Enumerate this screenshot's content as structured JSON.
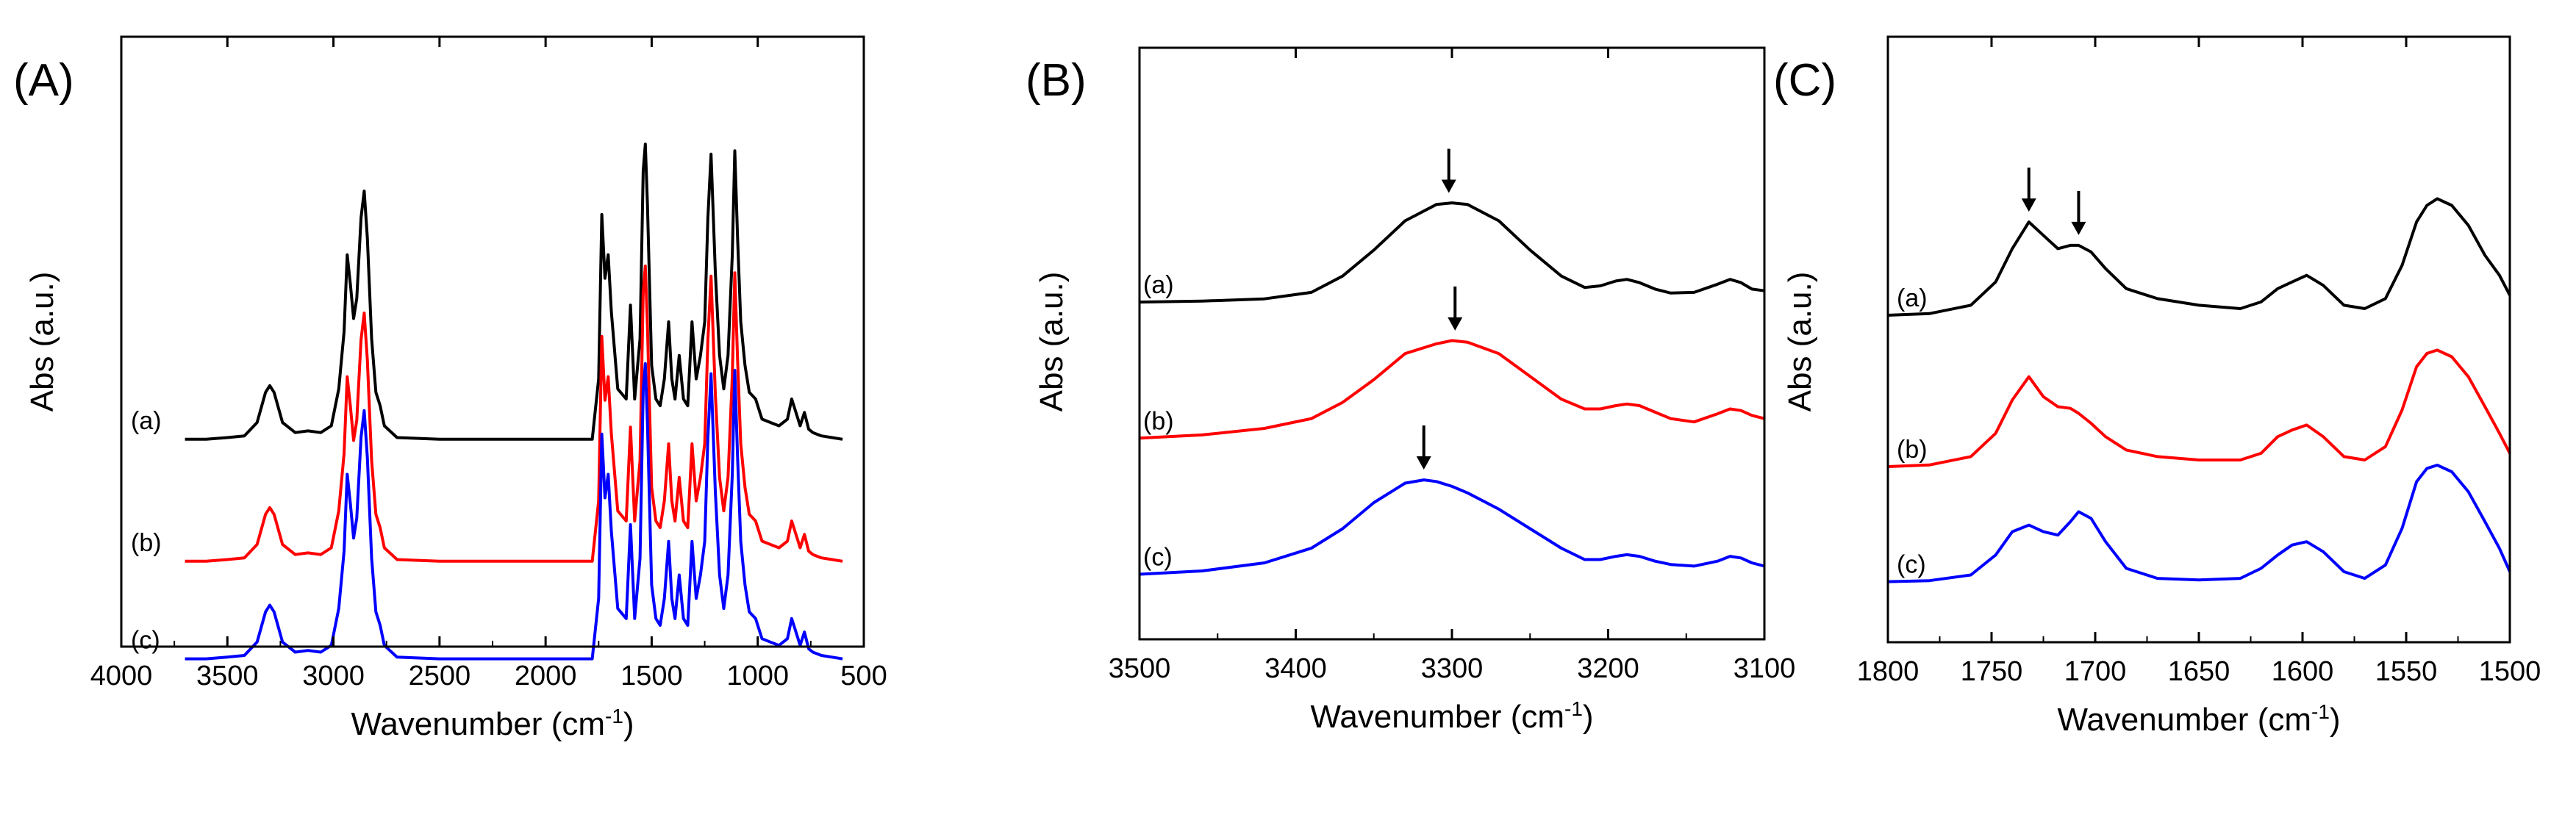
{
  "figure": {
    "background": "#ffffff",
    "axis_color": "#000000"
  },
  "chart_data": [
    {
      "type": "line",
      "panel_label": "(A)",
      "xlabel": "Wavenumber (cm",
      "xlabel_sup": "-1",
      "xlabel_end": ")",
      "ylabel": "Abs (a.u.)",
      "xlim": [
        4000,
        500
      ],
      "x_reversed": true,
      "ylim": [
        0,
        1
      ],
      "xticks": [
        4000,
        3500,
        3000,
        2500,
        2000,
        1500,
        1000,
        500
      ],
      "xtick_labels": [
        "4000",
        "3500",
        "3000",
        "2500",
        "2000",
        "1500",
        "1000",
        "500"
      ],
      "yticks": [],
      "arrows": [],
      "series": [
        {
          "name": "(a)",
          "color": "#000000",
          "baseline": 0.66,
          "x": [
            3700,
            3600,
            3500,
            3420,
            3360,
            3320,
            3300,
            3280,
            3240,
            3180,
            3120,
            3060,
            3010,
            2975,
            2950,
            2935,
            2920,
            2905,
            2890,
            2870,
            2855,
            2840,
            2820,
            2800,
            2780,
            2760,
            2700,
            2500,
            2000,
            1780,
            1750,
            1735,
            1720,
            1705,
            1690,
            1660,
            1620,
            1600,
            1580,
            1555,
            1540,
            1530,
            1520,
            1500,
            1480,
            1460,
            1440,
            1420,
            1405,
            1390,
            1370,
            1350,
            1330,
            1310,
            1290,
            1270,
            1250,
            1235,
            1220,
            1200,
            1180,
            1160,
            1140,
            1120,
            1108,
            1095,
            1080,
            1060,
            1040,
            1010,
            980,
            940,
            900,
            860,
            840,
            820,
            800,
            780,
            760,
            740,
            700,
            650,
            600
          ],
          "y": [
            0,
            0,
            0.005,
            0.01,
            0.05,
            0.14,
            0.16,
            0.14,
            0.05,
            0.02,
            0.025,
            0.02,
            0.04,
            0.15,
            0.32,
            0.55,
            0.46,
            0.36,
            0.42,
            0.66,
            0.74,
            0.6,
            0.3,
            0.14,
            0.1,
            0.04,
            0.005,
            0,
            0,
            0,
            0.18,
            0.67,
            0.48,
            0.55,
            0.38,
            0.15,
            0.12,
            0.4,
            0.12,
            0.3,
            0.8,
            0.88,
            0.7,
            0.22,
            0.12,
            0.1,
            0.18,
            0.35,
            0.18,
            0.12,
            0.25,
            0.12,
            0.1,
            0.35,
            0.18,
            0.25,
            0.35,
            0.66,
            0.85,
            0.5,
            0.25,
            0.15,
            0.25,
            0.55,
            0.86,
            0.6,
            0.35,
            0.22,
            0.14,
            0.12,
            0.06,
            0.05,
            0.04,
            0.06,
            0.12,
            0.08,
            0.04,
            0.08,
            0.03,
            0.02,
            0.01,
            0.005,
            0
          ]
        },
        {
          "name": "(b)",
          "color": "#ff0000",
          "baseline": 0.86,
          "x": [
            3700,
            3600,
            3500,
            3420,
            3360,
            3320,
            3300,
            3280,
            3240,
            3180,
            3120,
            3060,
            3010,
            2975,
            2950,
            2935,
            2920,
            2905,
            2890,
            2870,
            2855,
            2840,
            2820,
            2800,
            2780,
            2760,
            2700,
            2500,
            2000,
            1780,
            1750,
            1735,
            1720,
            1705,
            1690,
            1660,
            1620,
            1600,
            1580,
            1555,
            1540,
            1530,
            1520,
            1500,
            1480,
            1460,
            1440,
            1420,
            1405,
            1390,
            1370,
            1350,
            1330,
            1310,
            1290,
            1270,
            1250,
            1235,
            1220,
            1200,
            1180,
            1160,
            1140,
            1120,
            1108,
            1095,
            1080,
            1060,
            1040,
            1010,
            980,
            940,
            900,
            860,
            840,
            820,
            800,
            780,
            760,
            740,
            700,
            650,
            600
          ],
          "y": [
            0,
            0,
            0.005,
            0.01,
            0.05,
            0.14,
            0.16,
            0.14,
            0.05,
            0.02,
            0.025,
            0.02,
            0.04,
            0.15,
            0.32,
            0.55,
            0.46,
            0.36,
            0.42,
            0.66,
            0.74,
            0.6,
            0.3,
            0.14,
            0.1,
            0.04,
            0.005,
            0,
            0,
            0,
            0.18,
            0.67,
            0.48,
            0.55,
            0.38,
            0.15,
            0.12,
            0.4,
            0.12,
            0.3,
            0.8,
            0.88,
            0.7,
            0.22,
            0.12,
            0.1,
            0.18,
            0.35,
            0.18,
            0.12,
            0.25,
            0.12,
            0.1,
            0.35,
            0.18,
            0.25,
            0.35,
            0.66,
            0.85,
            0.5,
            0.25,
            0.15,
            0.25,
            0.55,
            0.86,
            0.6,
            0.35,
            0.22,
            0.14,
            0.12,
            0.06,
            0.05,
            0.04,
            0.06,
            0.12,
            0.08,
            0.04,
            0.08,
            0.03,
            0.02,
            0.01,
            0.005,
            0
          ]
        },
        {
          "name": "(c)",
          "color": "#0000ff",
          "baseline": 1.02,
          "x": [
            3700,
            3600,
            3500,
            3420,
            3360,
            3320,
            3300,
            3280,
            3240,
            3180,
            3120,
            3060,
            3010,
            2975,
            2950,
            2935,
            2920,
            2905,
            2890,
            2870,
            2855,
            2840,
            2820,
            2800,
            2780,
            2760,
            2700,
            2500,
            2000,
            1780,
            1750,
            1735,
            1720,
            1705,
            1690,
            1660,
            1620,
            1600,
            1580,
            1555,
            1540,
            1530,
            1520,
            1500,
            1480,
            1460,
            1440,
            1420,
            1405,
            1390,
            1370,
            1350,
            1330,
            1310,
            1290,
            1270,
            1250,
            1235,
            1220,
            1200,
            1180,
            1160,
            1140,
            1120,
            1108,
            1095,
            1080,
            1060,
            1040,
            1010,
            980,
            940,
            900,
            860,
            840,
            820,
            800,
            780,
            760,
            740,
            700,
            650,
            600
          ],
          "y": [
            0,
            0,
            0.005,
            0.01,
            0.05,
            0.14,
            0.16,
            0.14,
            0.05,
            0.02,
            0.025,
            0.02,
            0.04,
            0.15,
            0.32,
            0.55,
            0.46,
            0.36,
            0.42,
            0.66,
            0.74,
            0.6,
            0.3,
            0.14,
            0.1,
            0.04,
            0.005,
            0,
            0,
            0,
            0.18,
            0.67,
            0.48,
            0.55,
            0.38,
            0.15,
            0.12,
            0.4,
            0.12,
            0.3,
            0.8,
            0.88,
            0.7,
            0.22,
            0.12,
            0.1,
            0.18,
            0.35,
            0.18,
            0.12,
            0.25,
            0.12,
            0.1,
            0.35,
            0.18,
            0.25,
            0.35,
            0.66,
            0.85,
            0.5,
            0.25,
            0.15,
            0.25,
            0.55,
            0.86,
            0.6,
            0.35,
            0.22,
            0.14,
            0.12,
            0.06,
            0.05,
            0.04,
            0.06,
            0.12,
            0.08,
            0.04,
            0.08,
            0.03,
            0.02,
            0.01,
            0.005,
            0
          ]
        }
      ]
    },
    {
      "type": "line",
      "panel_label": "(B)",
      "xlabel": "Wavenumber (cm",
      "xlabel_sup": "-1",
      "xlabel_end": ")",
      "ylabel": "Abs (a.u.)",
      "xlim": [
        3500,
        3100
      ],
      "x_reversed": true,
      "ylim": [
        0,
        1
      ],
      "xticks": [
        3500,
        3400,
        3300,
        3200,
        3100
      ],
      "xtick_labels": [
        "3500",
        "3400",
        "3300",
        "3200",
        "3100"
      ],
      "yticks": [],
      "arrows": [
        {
          "series": "(a)",
          "x": 3302
        },
        {
          "series": "(b)",
          "x": 3298
        },
        {
          "series": "(c)",
          "x": 3318
        }
      ],
      "series": [
        {
          "name": "(a)",
          "color": "#000000",
          "baseline": 0.43,
          "x": [
            3500,
            3460,
            3420,
            3390,
            3370,
            3350,
            3330,
            3310,
            3300,
            3290,
            3270,
            3250,
            3230,
            3215,
            3205,
            3195,
            3188,
            3180,
            3170,
            3160,
            3145,
            3130,
            3122,
            3115,
            3108,
            3100
          ],
          "y": [
            0,
            0.003,
            0.01,
            0.03,
            0.08,
            0.16,
            0.25,
            0.3,
            0.305,
            0.3,
            0.25,
            0.16,
            0.08,
            0.045,
            0.05,
            0.065,
            0.07,
            0.06,
            0.04,
            0.028,
            0.03,
            0.055,
            0.07,
            0.06,
            0.04,
            0.035
          ]
        },
        {
          "name": "(b)",
          "color": "#ff0000",
          "baseline": 0.66,
          "x": [
            3500,
            3460,
            3420,
            3390,
            3370,
            3350,
            3330,
            3310,
            3300,
            3290,
            3270,
            3250,
            3230,
            3215,
            3205,
            3195,
            3188,
            3180,
            3170,
            3160,
            3145,
            3130,
            3122,
            3115,
            3108,
            3100
          ],
          "y": [
            0,
            0.01,
            0.03,
            0.06,
            0.11,
            0.18,
            0.26,
            0.29,
            0.3,
            0.295,
            0.26,
            0.19,
            0.12,
            0.09,
            0.09,
            0.1,
            0.105,
            0.1,
            0.08,
            0.06,
            0.05,
            0.075,
            0.09,
            0.085,
            0.07,
            0.06
          ]
        },
        {
          "name": "(c)",
          "color": "#0000ff",
          "baseline": 0.89,
          "x": [
            3500,
            3460,
            3420,
            3390,
            3370,
            3350,
            3330,
            3318,
            3310,
            3300,
            3290,
            3270,
            3250,
            3230,
            3215,
            3205,
            3195,
            3188,
            3180,
            3170,
            3160,
            3145,
            3130,
            3122,
            3115,
            3108,
            3100
          ],
          "y": [
            0,
            0.01,
            0.035,
            0.08,
            0.14,
            0.22,
            0.28,
            0.29,
            0.285,
            0.27,
            0.25,
            0.2,
            0.14,
            0.08,
            0.045,
            0.045,
            0.055,
            0.06,
            0.055,
            0.04,
            0.03,
            0.025,
            0.04,
            0.055,
            0.05,
            0.035,
            0.025
          ]
        }
      ]
    },
    {
      "type": "line",
      "panel_label": "(C)",
      "xlabel": "Wavenumber (cm",
      "xlabel_sup": "-1",
      "xlabel_end": ")",
      "ylabel": "Abs (a.u.)",
      "xlim": [
        1800,
        1500
      ],
      "x_reversed": true,
      "ylim": [
        0,
        1
      ],
      "xticks": [
        1800,
        1750,
        1700,
        1650,
        1600,
        1550,
        1500
      ],
      "xtick_labels": [
        "1800",
        "1750",
        "1700",
        "1650",
        "1600",
        "1550",
        "1500"
      ],
      "yticks": [],
      "arrows": [
        {
          "series": "(a)",
          "x": 1732
        },
        {
          "series": "(a)",
          "x": 1708
        }
      ],
      "series": [
        {
          "name": "(a)",
          "color": "#000000",
          "baseline": 0.46,
          "x": [
            1800,
            1780,
            1760,
            1748,
            1740,
            1732,
            1725,
            1718,
            1712,
            1708,
            1702,
            1695,
            1685,
            1670,
            1650,
            1630,
            1620,
            1612,
            1605,
            1598,
            1590,
            1580,
            1570,
            1560,
            1552,
            1545,
            1540,
            1535,
            1528,
            1520,
            1512,
            1505,
            1500
          ],
          "y": [
            0,
            0.005,
            0.03,
            0.1,
            0.2,
            0.28,
            0.24,
            0.2,
            0.21,
            0.21,
            0.19,
            0.14,
            0.08,
            0.05,
            0.03,
            0.02,
            0.04,
            0.08,
            0.1,
            0.12,
            0.09,
            0.03,
            0.02,
            0.05,
            0.15,
            0.28,
            0.33,
            0.35,
            0.33,
            0.27,
            0.18,
            0.12,
            0.06
          ]
        },
        {
          "name": "(b)",
          "color": "#ff0000",
          "baseline": 0.71,
          "x": [
            1800,
            1780,
            1760,
            1748,
            1740,
            1732,
            1725,
            1718,
            1712,
            1708,
            1702,
            1695,
            1685,
            1670,
            1650,
            1630,
            1620,
            1612,
            1605,
            1598,
            1590,
            1580,
            1570,
            1560,
            1552,
            1545,
            1540,
            1535,
            1528,
            1520,
            1512,
            1505,
            1500
          ],
          "y": [
            0,
            0.005,
            0.03,
            0.1,
            0.2,
            0.27,
            0.21,
            0.18,
            0.175,
            0.16,
            0.13,
            0.09,
            0.05,
            0.03,
            0.02,
            0.02,
            0.04,
            0.09,
            0.11,
            0.125,
            0.09,
            0.03,
            0.02,
            0.06,
            0.17,
            0.3,
            0.34,
            0.35,
            0.33,
            0.27,
            0.18,
            0.1,
            0.04
          ]
        },
        {
          "name": "(c)",
          "color": "#0000ff",
          "baseline": 0.9,
          "x": [
            1800,
            1780,
            1760,
            1748,
            1740,
            1732,
            1725,
            1718,
            1712,
            1708,
            1702,
            1695,
            1685,
            1670,
            1650,
            1630,
            1620,
            1612,
            1605,
            1598,
            1590,
            1580,
            1570,
            1560,
            1552,
            1545,
            1540,
            1535,
            1528,
            1520,
            1512,
            1505,
            1500
          ],
          "y": [
            0,
            0.003,
            0.02,
            0.08,
            0.15,
            0.17,
            0.15,
            0.14,
            0.18,
            0.21,
            0.19,
            0.12,
            0.04,
            0.01,
            0.005,
            0.01,
            0.04,
            0.08,
            0.11,
            0.12,
            0.09,
            0.03,
            0.01,
            0.05,
            0.16,
            0.3,
            0.34,
            0.35,
            0.33,
            0.27,
            0.18,
            0.1,
            0.03
          ]
        }
      ]
    }
  ]
}
